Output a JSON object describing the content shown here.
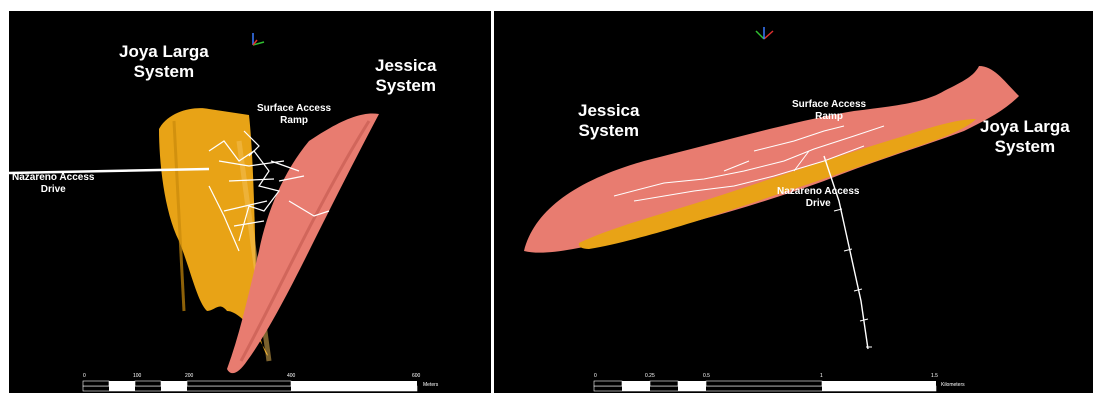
{
  "left_view": {
    "system_a": [
      "Joya  Larga",
      "System"
    ],
    "system_b": [
      "Jessica",
      "System"
    ],
    "ramp": [
      "Surface Access",
      "Ramp"
    ],
    "drive": [
      "Nazareno Access",
      "Drive"
    ],
    "scale": {
      "ticks": [
        "0",
        "100",
        "200",
        "400",
        "600"
      ],
      "unit": "Meters"
    }
  },
  "right_view": {
    "system_a": [
      "Jessica",
      "System"
    ],
    "system_b": [
      "Joya Larga",
      "System"
    ],
    "ramp": [
      "Surface Access",
      "Ramp"
    ],
    "drive": [
      "Nazareno Access",
      "Drive"
    ],
    "scale": {
      "ticks": [
        "0",
        "0.25",
        "0.5",
        "1",
        "1.5"
      ],
      "unit": "Kilometers"
    }
  },
  "colors": {
    "background": "#000000",
    "joya_larga": "#e8a316",
    "jessica": "#e87c70",
    "workings": "#ffffff"
  }
}
